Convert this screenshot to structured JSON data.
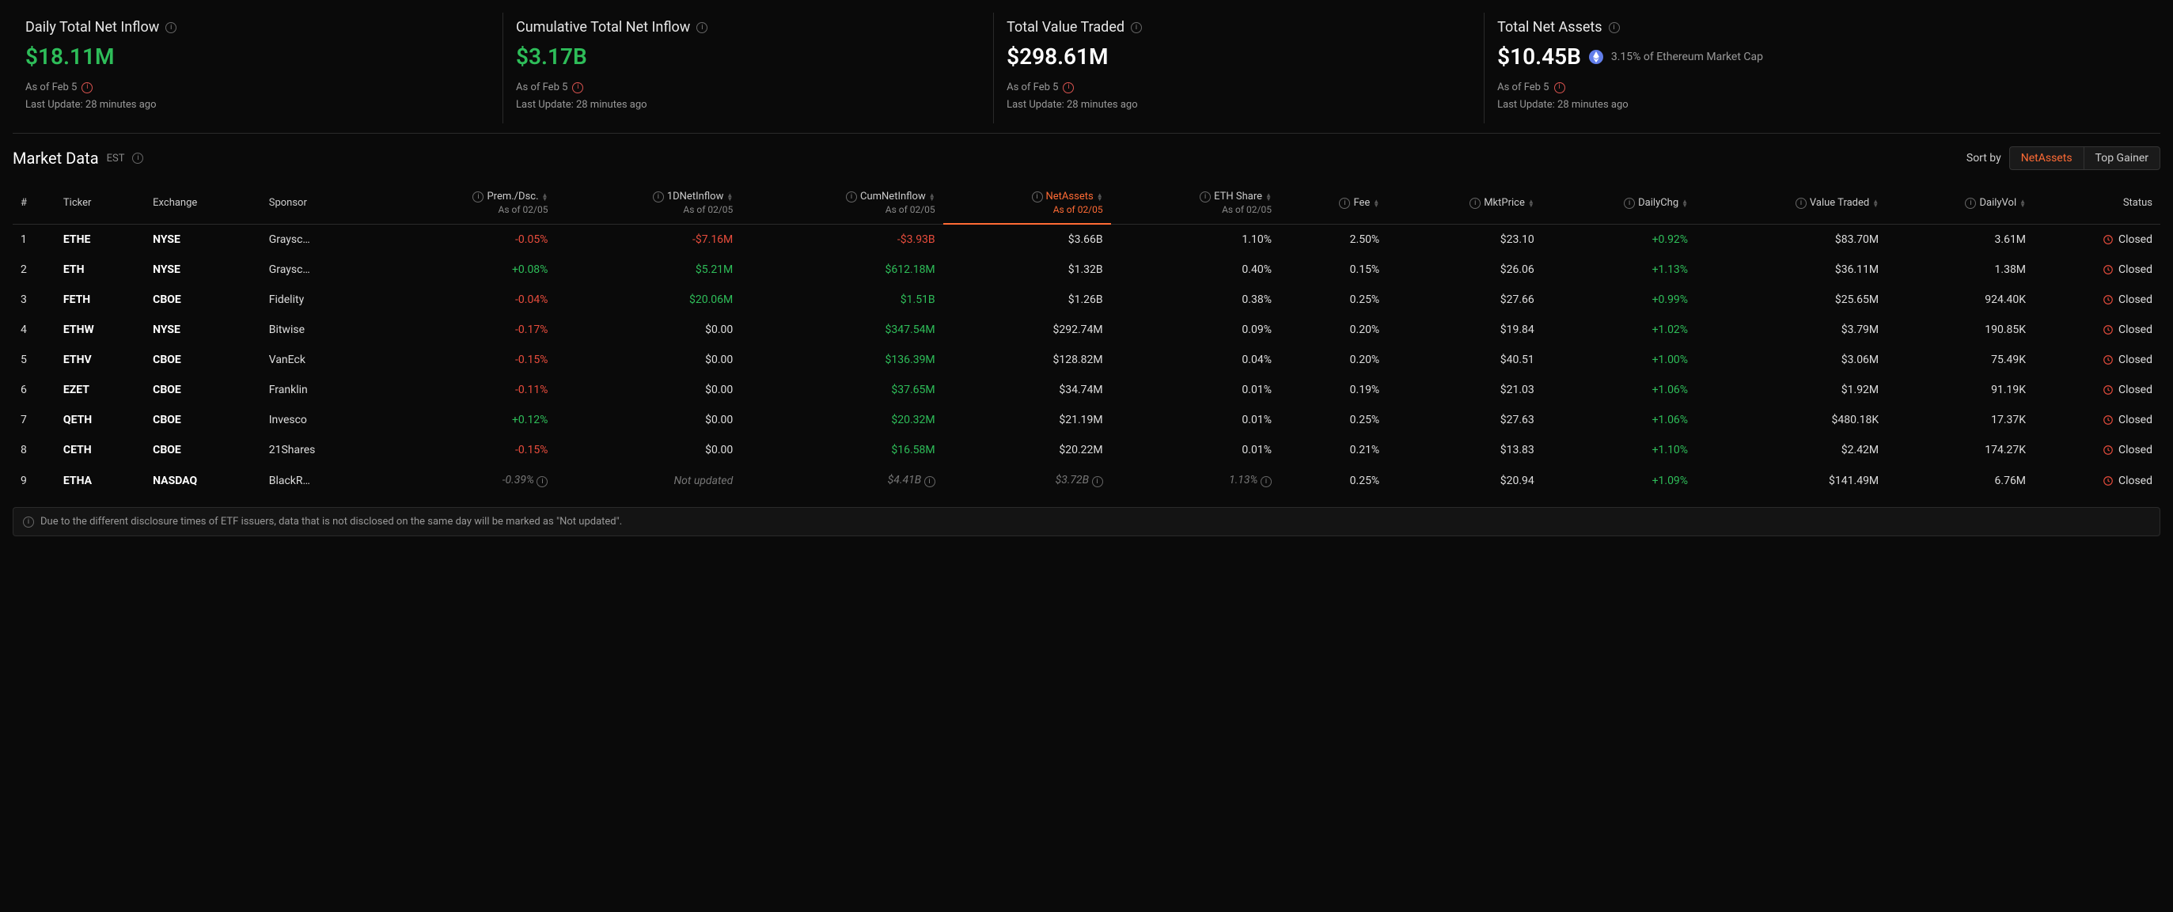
{
  "summary": [
    {
      "title": "Daily Total Net Inflow",
      "value": "$18.11M",
      "valueClass": "green",
      "asOf": "As of Feb 5",
      "updated": "Last Update: 28 minutes ago",
      "extra": null
    },
    {
      "title": "Cumulative Total Net Inflow",
      "value": "$3.17B",
      "valueClass": "green",
      "asOf": "As of Feb 5",
      "updated": "Last Update: 28 minutes ago",
      "extra": null
    },
    {
      "title": "Total Value Traded",
      "value": "$298.61M",
      "valueClass": "white",
      "asOf": "As of Feb 5",
      "updated": "Last Update: 28 minutes ago",
      "extra": null
    },
    {
      "title": "Total Net Assets",
      "value": "$10.45B",
      "valueClass": "white",
      "asOf": "As of Feb 5",
      "updated": "Last Update: 28 minutes ago",
      "extra": "3.15% of Ethereum Market Cap"
    }
  ],
  "marketData": {
    "title": "Market Data",
    "tz": "EST",
    "sortByLabel": "Sort by",
    "sortTabs": [
      {
        "label": "NetAssets",
        "active": true
      },
      {
        "label": "Top Gainer",
        "active": false
      }
    ],
    "subDate": "As of 02/05",
    "columns": [
      {
        "key": "idx",
        "label": "#",
        "align": "left",
        "sub": false,
        "info": false,
        "sort": false
      },
      {
        "key": "ticker",
        "label": "Ticker",
        "align": "left",
        "sub": false,
        "info": false,
        "sort": false
      },
      {
        "key": "exchange",
        "label": "Exchange",
        "align": "left",
        "sub": false,
        "info": false,
        "sort": false
      },
      {
        "key": "sponsor",
        "label": "Sponsor",
        "align": "left",
        "sub": false,
        "info": false,
        "sort": false
      },
      {
        "key": "prem",
        "label": "Prem./Dsc.",
        "align": "right",
        "sub": true,
        "info": true,
        "sort": true
      },
      {
        "key": "net1d",
        "label": "1DNetInflow",
        "align": "right",
        "sub": true,
        "info": true,
        "sort": true
      },
      {
        "key": "cumnet",
        "label": "CumNetInflow",
        "align": "right",
        "sub": true,
        "info": true,
        "sort": true
      },
      {
        "key": "netassets",
        "label": "NetAssets",
        "align": "right",
        "sub": true,
        "info": true,
        "sort": true,
        "active": true
      },
      {
        "key": "ethshare",
        "label": "ETH Share",
        "align": "right",
        "sub": true,
        "info": true,
        "sort": true
      },
      {
        "key": "fee",
        "label": "Fee",
        "align": "right",
        "sub": false,
        "info": true,
        "sort": true
      },
      {
        "key": "mktprice",
        "label": "MktPrice",
        "align": "right",
        "sub": false,
        "info": true,
        "sort": true
      },
      {
        "key": "dailychg",
        "label": "DailyChg",
        "align": "right",
        "sub": false,
        "info": true,
        "sort": true
      },
      {
        "key": "valuetraded",
        "label": "Value Traded",
        "align": "right",
        "sub": false,
        "info": true,
        "sort": true
      },
      {
        "key": "dailyvol",
        "label": "DailyVol",
        "align": "right",
        "sub": false,
        "info": true,
        "sort": true
      },
      {
        "key": "status",
        "label": "Status",
        "align": "right",
        "sub": false,
        "info": false,
        "sort": false
      }
    ],
    "rows": [
      {
        "idx": "1",
        "ticker": "ETHE",
        "exchange": "NYSE",
        "sponsor": "Graysc…",
        "prem": {
          "v": "-0.05%",
          "c": "red"
        },
        "net1d": {
          "v": "-$7.16M",
          "c": "red"
        },
        "cumnet": {
          "v": "-$3.93B",
          "c": "red"
        },
        "netassets": {
          "v": "$3.66B"
        },
        "ethshare": {
          "v": "1.10%"
        },
        "fee": "2.50%",
        "mktprice": "$23.10",
        "dailychg": {
          "v": "+0.92%",
          "c": "green"
        },
        "valuetraded": "$83.70M",
        "dailyvol": "3.61M",
        "status": "Closed"
      },
      {
        "idx": "2",
        "ticker": "ETH",
        "exchange": "NYSE",
        "sponsor": "Graysc…",
        "prem": {
          "v": "+0.08%",
          "c": "green"
        },
        "net1d": {
          "v": "$5.21M",
          "c": "green"
        },
        "cumnet": {
          "v": "$612.18M",
          "c": "green"
        },
        "netassets": {
          "v": "$1.32B"
        },
        "ethshare": {
          "v": "0.40%"
        },
        "fee": "0.15%",
        "mktprice": "$26.06",
        "dailychg": {
          "v": "+1.13%",
          "c": "green"
        },
        "valuetraded": "$36.11M",
        "dailyvol": "1.38M",
        "status": "Closed"
      },
      {
        "idx": "3",
        "ticker": "FETH",
        "exchange": "CBOE",
        "sponsor": "Fidelity",
        "prem": {
          "v": "-0.04%",
          "c": "red"
        },
        "net1d": {
          "v": "$20.06M",
          "c": "green"
        },
        "cumnet": {
          "v": "$1.51B",
          "c": "green"
        },
        "netassets": {
          "v": "$1.26B"
        },
        "ethshare": {
          "v": "0.38%"
        },
        "fee": "0.25%",
        "mktprice": "$27.66",
        "dailychg": {
          "v": "+0.99%",
          "c": "green"
        },
        "valuetraded": "$25.65M",
        "dailyvol": "924.40K",
        "status": "Closed"
      },
      {
        "idx": "4",
        "ticker": "ETHW",
        "exchange": "NYSE",
        "sponsor": "Bitwise",
        "prem": {
          "v": "-0.17%",
          "c": "red"
        },
        "net1d": {
          "v": "$0.00"
        },
        "cumnet": {
          "v": "$347.54M",
          "c": "green"
        },
        "netassets": {
          "v": "$292.74M"
        },
        "ethshare": {
          "v": "0.09%"
        },
        "fee": "0.20%",
        "mktprice": "$19.84",
        "dailychg": {
          "v": "+1.02%",
          "c": "green"
        },
        "valuetraded": "$3.79M",
        "dailyvol": "190.85K",
        "status": "Closed"
      },
      {
        "idx": "5",
        "ticker": "ETHV",
        "exchange": "CBOE",
        "sponsor": "VanEck",
        "prem": {
          "v": "-0.15%",
          "c": "red"
        },
        "net1d": {
          "v": "$0.00"
        },
        "cumnet": {
          "v": "$136.39M",
          "c": "green"
        },
        "netassets": {
          "v": "$128.82M"
        },
        "ethshare": {
          "v": "0.04%"
        },
        "fee": "0.20%",
        "mktprice": "$40.51",
        "dailychg": {
          "v": "+1.00%",
          "c": "green"
        },
        "valuetraded": "$3.06M",
        "dailyvol": "75.49K",
        "status": "Closed"
      },
      {
        "idx": "6",
        "ticker": "EZET",
        "exchange": "CBOE",
        "sponsor": "Franklin",
        "prem": {
          "v": "-0.11%",
          "c": "red"
        },
        "net1d": {
          "v": "$0.00"
        },
        "cumnet": {
          "v": "$37.65M",
          "c": "green"
        },
        "netassets": {
          "v": "$34.74M"
        },
        "ethshare": {
          "v": "0.01%"
        },
        "fee": "0.19%",
        "mktprice": "$21.03",
        "dailychg": {
          "v": "+1.06%",
          "c": "green"
        },
        "valuetraded": "$1.92M",
        "dailyvol": "91.19K",
        "status": "Closed"
      },
      {
        "idx": "7",
        "ticker": "QETH",
        "exchange": "CBOE",
        "sponsor": "Invesco",
        "prem": {
          "v": "+0.12%",
          "c": "green"
        },
        "net1d": {
          "v": "$0.00"
        },
        "cumnet": {
          "v": "$20.32M",
          "c": "green"
        },
        "netassets": {
          "v": "$21.19M"
        },
        "ethshare": {
          "v": "0.01%"
        },
        "fee": "0.25%",
        "mktprice": "$27.63",
        "dailychg": {
          "v": "+1.06%",
          "c": "green"
        },
        "valuetraded": "$480.18K",
        "dailyvol": "17.37K",
        "status": "Closed"
      },
      {
        "idx": "8",
        "ticker": "CETH",
        "exchange": "CBOE",
        "sponsor": "21Shares",
        "prem": {
          "v": "-0.15%",
          "c": "red"
        },
        "net1d": {
          "v": "$0.00"
        },
        "cumnet": {
          "v": "$16.58M",
          "c": "green"
        },
        "netassets": {
          "v": "$20.22M"
        },
        "ethshare": {
          "v": "0.01%"
        },
        "fee": "0.21%",
        "mktprice": "$13.83",
        "dailychg": {
          "v": "+1.10%",
          "c": "green"
        },
        "valuetraded": "$2.42M",
        "dailyvol": "174.27K",
        "status": "Closed"
      },
      {
        "idx": "9",
        "ticker": "ETHA",
        "exchange": "NASDAQ",
        "sponsor": "BlackR…",
        "prem": {
          "v": "-0.39%",
          "c": "muted",
          "info": true
        },
        "net1d": {
          "v": "Not updated",
          "c": "muted"
        },
        "cumnet": {
          "v": "$4.41B",
          "c": "muted",
          "info": true
        },
        "netassets": {
          "v": "$3.72B",
          "c": "muted",
          "info": true
        },
        "ethshare": {
          "v": "1.13%",
          "c": "muted",
          "info": true
        },
        "fee": "0.25%",
        "mktprice": "$20.94",
        "dailychg": {
          "v": "+1.09%",
          "c": "green"
        },
        "valuetraded": "$141.49M",
        "dailyvol": "6.76M",
        "status": "Closed"
      }
    ],
    "footerNote": "Due to the different disclosure times of ETF issuers, data that is not disclosed on the same day will be marked as \"Not updated\"."
  }
}
